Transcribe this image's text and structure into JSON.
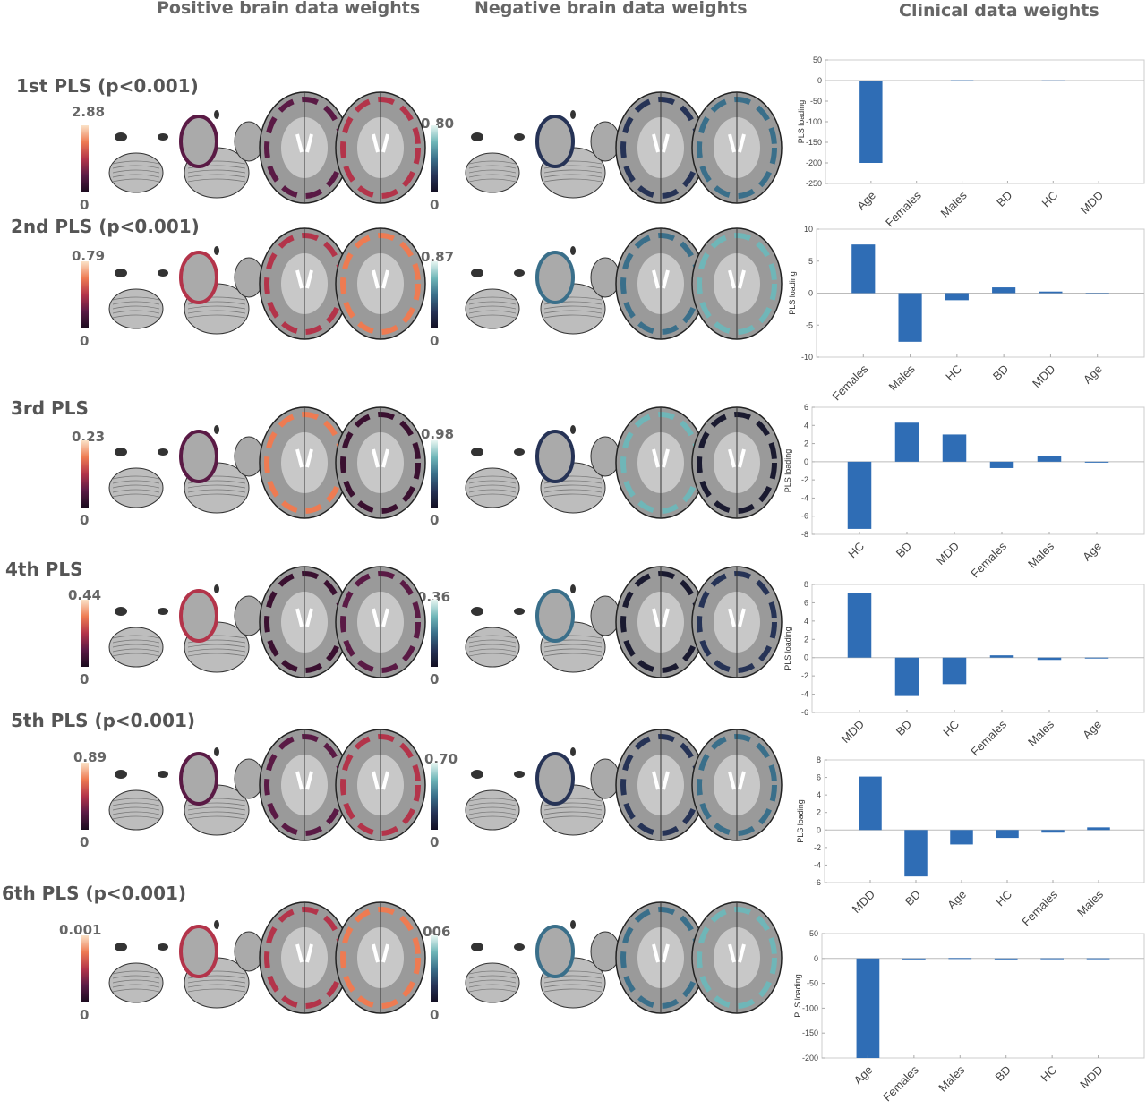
{
  "column_titles": {
    "positive": "Positive brain data weights",
    "negative": "Negative brain data weights",
    "clinical": "Clinical data weights"
  },
  "colors": {
    "bar": "#2f6db5",
    "positive_cmap": [
      "#1a0b1e",
      "#b3344a",
      "#fbe3c8"
    ],
    "negative_cmap": [
      "#120e22",
      "#3a6f8a",
      "#e8f6f2"
    ]
  },
  "rows": [
    {
      "label": "1st PLS (p<0.001)",
      "pos_max": "2.88",
      "pos_min": "0",
      "neg_max": "0.80",
      "neg_min": "0"
    },
    {
      "label": "2nd PLS (p<0.001)",
      "pos_max": "0.79",
      "pos_min": "0",
      "neg_max": "0.87",
      "neg_min": "0"
    },
    {
      "label": "3rd PLS",
      "pos_max": "0.23",
      "pos_min": "0",
      "neg_max": "0.98",
      "neg_min": "0"
    },
    {
      "label": "4th PLS",
      "pos_max": "0.44",
      "pos_min": "0",
      "neg_max": "0.36",
      "neg_min": "0"
    },
    {
      "label": "5th PLS (p<0.001)",
      "pos_max": "0.89",
      "pos_min": "0",
      "neg_max": "0.70",
      "neg_min": "0"
    },
    {
      "label": "6th PLS (p<0.001)",
      "pos_max": "0.001",
      "pos_min": "0",
      "neg_max": "0.006",
      "neg_min": "0"
    }
  ],
  "chart_data": [
    {
      "type": "bar",
      "ylabel": "PLS loading",
      "ylim": [
        -250,
        50
      ],
      "yticks": [
        50,
        0,
        -50,
        -100,
        -150,
        -200,
        -250
      ],
      "categories": [
        "Age",
        "Females",
        "Males",
        "BD",
        "HC",
        "MDD"
      ],
      "values": [
        -200,
        -0.8,
        0.8,
        -0.3,
        0.5,
        -0.3
      ]
    },
    {
      "type": "bar",
      "ylabel": "PLS loading",
      "ylim": [
        -10,
        10
      ],
      "yticks": [
        10,
        5,
        0,
        -5,
        -10
      ],
      "categories": [
        "Females",
        "Males",
        "HC",
        "BD",
        "MDD",
        "Age"
      ],
      "values": [
        7.6,
        -7.6,
        -1.1,
        0.9,
        0.25,
        -0.05
      ]
    },
    {
      "type": "bar",
      "ylabel": "PLS loading",
      "ylim": [
        -8,
        6
      ],
      "yticks": [
        6,
        4,
        2,
        0,
        -2,
        -4,
        -6,
        -8
      ],
      "categories": [
        "HC",
        "BD",
        "MDD",
        "Females",
        "Males",
        "Age"
      ],
      "values": [
        -7.4,
        4.3,
        3.0,
        -0.7,
        0.65,
        -0.1
      ]
    },
    {
      "type": "bar",
      "ylabel": "PLS loading",
      "ylim": [
        -6,
        8
      ],
      "yticks": [
        8,
        6,
        4,
        2,
        0,
        -2,
        -4,
        -6
      ],
      "categories": [
        "MDD",
        "BD",
        "HC",
        "Females",
        "Males",
        "Age"
      ],
      "values": [
        7.1,
        -4.2,
        -2.9,
        0.25,
        -0.25,
        0
      ]
    },
    {
      "type": "bar",
      "ylabel": "PLS loading",
      "ylim": [
        -6,
        8
      ],
      "yticks": [
        8,
        6,
        4,
        2,
        0,
        -2,
        -4,
        -6
      ],
      "categories": [
        "MDD",
        "BD",
        "Age",
        "HC",
        "Females",
        "Males"
      ],
      "values": [
        6.1,
        -5.3,
        -1.65,
        -0.9,
        -0.3,
        0.3
      ]
    },
    {
      "type": "bar",
      "ylabel": "PLS loading",
      "ylim": [
        -200,
        50
      ],
      "yticks": [
        50,
        0,
        -50,
        -100,
        -150,
        -200
      ],
      "categories": [
        "Age",
        "Females",
        "Males",
        "BD",
        "HC",
        "MDD"
      ],
      "values": [
        -200,
        -0.8,
        0.8,
        -0.3,
        0.3,
        0.3
      ]
    }
  ]
}
